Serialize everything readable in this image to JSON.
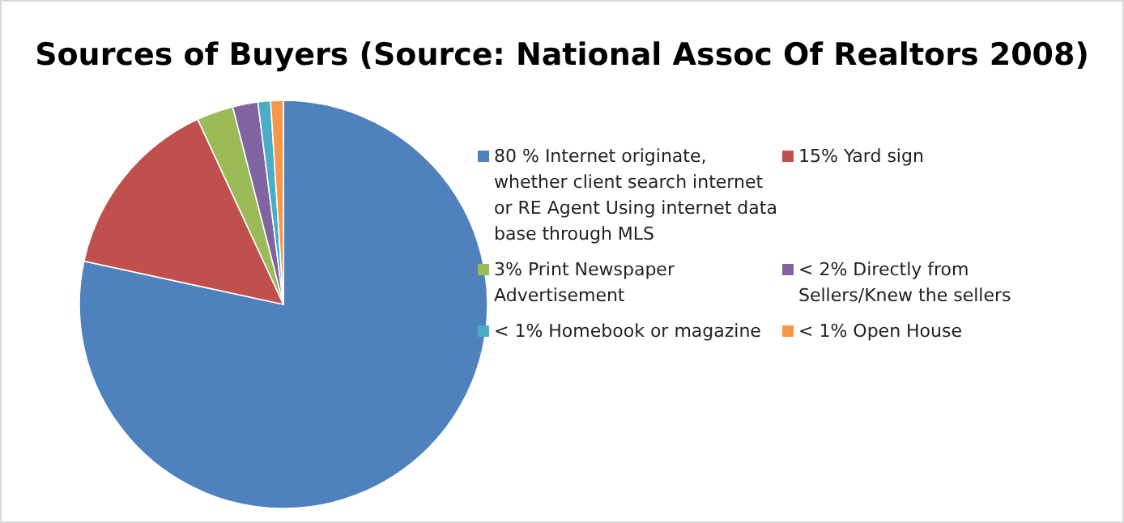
{
  "chart_data": {
    "type": "pie",
    "title": "Sources of Buyers (Source: National Assoc Of Realtors 2008)",
    "categories": [
      "80 % Internet originate, whether client search internet or RE Agent Using internet data base through MLS",
      "15% Yard sign",
      "3% Print Newspaper Advertisement",
      "< 2% Directly from Sellers/Knew the sellers",
      "<  1% Homebook or magazine",
      "< 1% Open House"
    ],
    "values": [
      78.4,
      14.7,
      2.9,
      2,
      1,
      1
    ],
    "colors": [
      "#4f81bd",
      "#c0504d",
      "#9bbb59",
      "#8064a2",
      "#4bacc6",
      "#f79646"
    ],
    "legend": "right"
  }
}
